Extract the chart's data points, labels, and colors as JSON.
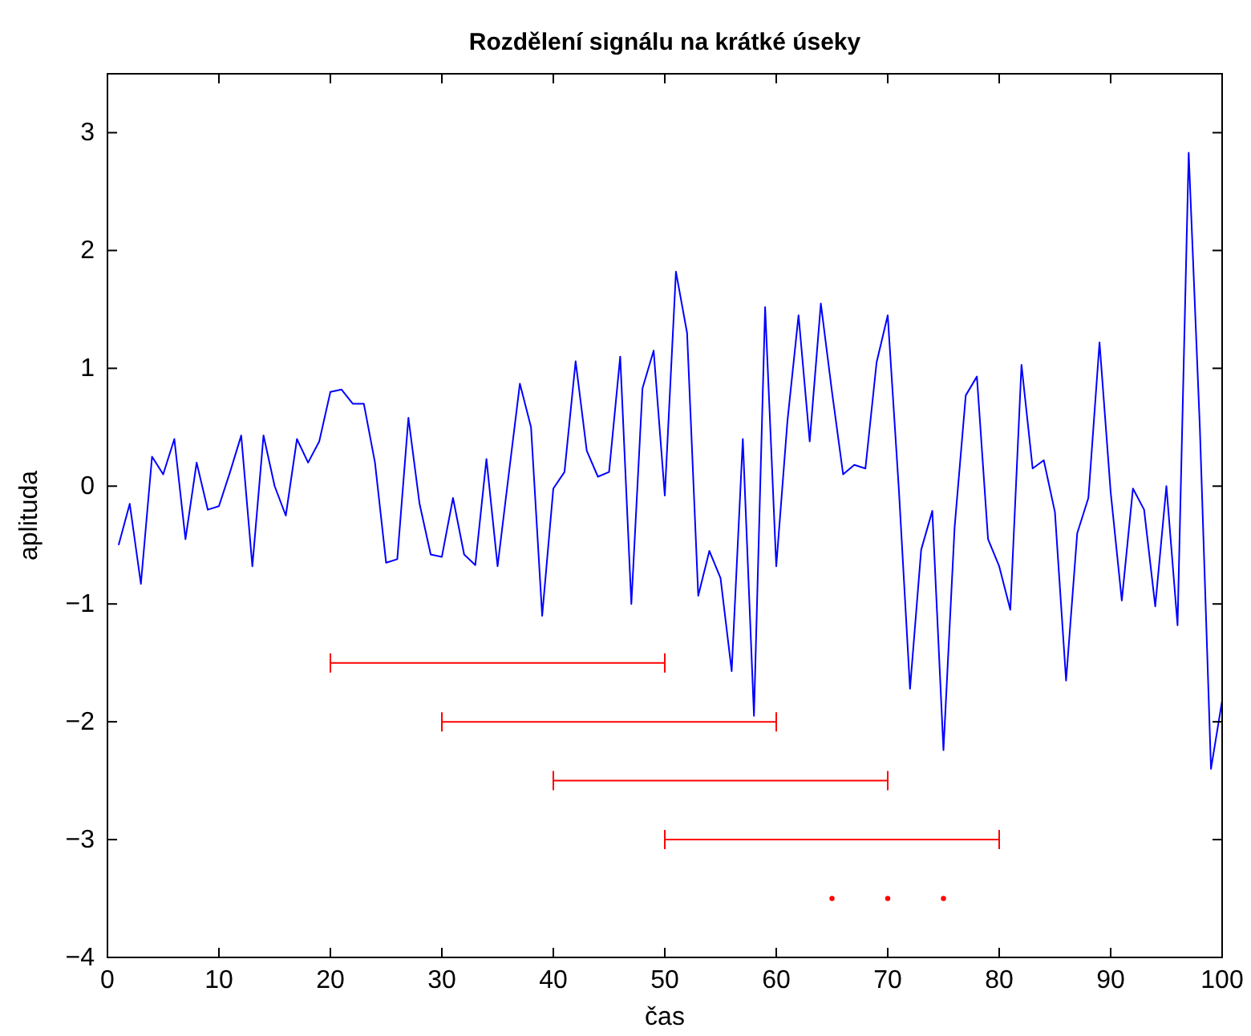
{
  "chart_data": {
    "type": "line",
    "title": "Rozdělení signálu na krátké úseky",
    "xlabel": "čas",
    "ylabel": "aplituda",
    "xlim": [
      0,
      100
    ],
    "ylim": [
      -4,
      3.5
    ],
    "xticks": [
      0,
      10,
      20,
      30,
      40,
      50,
      60,
      70,
      80,
      90,
      100
    ],
    "yticks": [
      -4,
      -3,
      -2,
      -1,
      0,
      1,
      2,
      3
    ],
    "grid": false,
    "line_style": "solid",
    "series": [
      {
        "color": "#0000ff",
        "x": [
          1,
          2,
          3,
          4,
          5,
          6,
          7,
          8,
          9,
          10,
          11,
          12,
          13,
          14,
          15,
          16,
          17,
          18,
          19,
          20,
          21,
          22,
          23,
          24,
          25,
          26,
          27,
          28,
          29,
          30,
          31,
          32,
          33,
          34,
          35,
          36,
          37,
          38,
          39,
          40,
          41,
          42,
          43,
          44,
          45,
          46,
          47,
          48,
          49,
          50,
          51,
          52,
          53,
          54,
          55,
          56,
          57,
          58,
          59,
          60,
          61,
          62,
          63,
          64,
          65,
          66,
          67,
          68,
          69,
          70,
          71,
          72,
          73,
          74,
          75,
          76,
          77,
          78,
          79,
          80,
          81,
          82,
          83,
          84,
          85,
          86,
          87,
          88,
          89,
          90,
          91,
          92,
          93,
          94,
          95,
          96,
          97,
          98,
          99,
          100
        ],
        "values": [
          -0.5,
          -0.15,
          -0.83,
          0.25,
          0.1,
          0.4,
          -0.45,
          0.2,
          -0.2,
          -0.17,
          0.12,
          0.43,
          -0.68,
          0.43,
          0.0,
          -0.25,
          0.4,
          0.2,
          0.38,
          0.8,
          0.82,
          0.7,
          0.7,
          0.2,
          -0.65,
          -0.62,
          0.58,
          -0.15,
          -0.58,
          -0.6,
          -0.1,
          -0.58,
          -0.67,
          0.23,
          -0.68,
          0.1,
          0.87,
          0.5,
          -1.1,
          -0.02,
          0.12,
          1.06,
          0.3,
          0.08,
          0.12,
          1.1,
          -1.0,
          0.83,
          1.15,
          -0.08,
          1.82,
          1.3,
          -0.93,
          -0.55,
          -0.78,
          -1.57,
          0.4,
          -1.95,
          1.52,
          -0.68,
          0.55,
          1.45,
          0.38,
          1.55,
          0.8,
          0.1,
          0.18,
          0.15,
          1.05,
          1.45,
          -0.03,
          -1.72,
          -0.54,
          -0.21,
          -2.24,
          -0.35,
          0.77,
          0.93,
          -0.45,
          -0.68,
          -1.05,
          1.03,
          0.15,
          0.22,
          -0.22,
          -1.65,
          -0.4,
          -0.1,
          1.22,
          -0.05,
          -0.97,
          -0.02,
          -0.2,
          -1.02,
          0.0,
          -1.18,
          2.83,
          0.5,
          -2.4,
          -1.82
        ]
      },
      {
        "color": "#ff0000",
        "x": [
          20,
          50
        ],
        "values": [
          -1.5,
          -1.5
        ]
      },
      {
        "color": "#ff0000",
        "x": [
          30,
          60
        ],
        "values": [
          -2,
          -2
        ]
      },
      {
        "color": "#ff0000",
        "x": [
          40,
          70
        ],
        "values": [
          -2.5,
          -2.5
        ]
      },
      {
        "color": "#ff0000",
        "x": [
          50,
          80
        ],
        "values": [
          -3,
          -3
        ]
      },
      {
        "type": "scatter",
        "marker": "circle",
        "color": "#ff0000",
        "x": [
          65,
          70,
          75
        ],
        "values": [
          -3.5,
          -3.5,
          -3.5
        ]
      }
    ]
  }
}
